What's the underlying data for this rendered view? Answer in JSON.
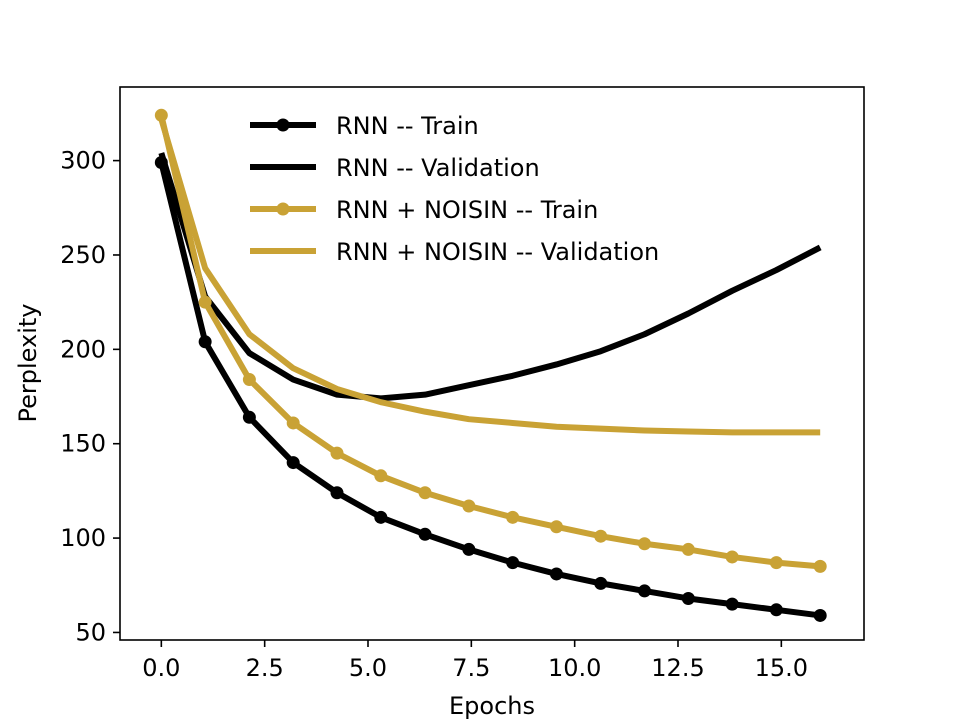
{
  "chart_data": {
    "type": "line",
    "xlabel": "Epochs",
    "ylabel": "Perplexity",
    "xlim": [
      -1.0,
      17.0
    ],
    "ylim": [
      46,
      339
    ],
    "xticks": [
      0.0,
      2.5,
      5.0,
      7.5,
      10.0,
      12.5,
      15.0
    ],
    "xtick_labels": [
      "0.0",
      "2.5",
      "5.0",
      "7.5",
      "10.0",
      "12.5",
      "15.0"
    ],
    "yticks": [
      50,
      100,
      150,
      200,
      250,
      300
    ],
    "ytick_labels": [
      "50",
      "100",
      "150",
      "200",
      "250",
      "300"
    ],
    "grid": false,
    "legend_position": "top-center",
    "series": [
      {
        "name": "RNN -- Train",
        "color": "#000000",
        "marker": "circle",
        "x": [
          0,
          1.06,
          2.13,
          3.19,
          4.25,
          5.31,
          6.38,
          7.44,
          8.5,
          9.56,
          10.63,
          11.69,
          12.75,
          13.81,
          14.88,
          15.94
        ],
        "y": [
          299,
          204,
          164,
          140,
          124,
          111,
          102,
          94,
          87,
          81,
          76,
          72,
          68,
          65,
          62,
          59
        ]
      },
      {
        "name": "RNN -- Validation",
        "color": "#000000",
        "marker": "none",
        "x": [
          0,
          1.06,
          2.13,
          3.19,
          4.25,
          5.31,
          6.38,
          7.44,
          8.5,
          9.56,
          10.63,
          11.69,
          12.75,
          13.81,
          14.88,
          15.94
        ],
        "y": [
          304,
          228,
          198,
          184,
          176,
          174,
          176,
          181,
          186,
          192,
          199,
          208,
          219,
          231,
          242,
          254
        ]
      },
      {
        "name": "RNN + NOISIN -- Train",
        "color": "#C9A235",
        "marker": "circle",
        "x": [
          0,
          1.06,
          2.13,
          3.19,
          4.25,
          5.31,
          6.38,
          7.44,
          8.5,
          9.56,
          10.63,
          11.69,
          12.75,
          13.81,
          14.88,
          15.94
        ],
        "y": [
          324,
          225,
          184,
          161,
          145,
          133,
          124,
          117,
          111,
          106,
          101,
          97,
          94,
          90,
          87,
          85
        ]
      },
      {
        "name": "RNN + NOISIN -- Validation",
        "color": "#C9A235",
        "marker": "none",
        "x": [
          0,
          1.06,
          2.13,
          3.19,
          4.25,
          5.31,
          6.38,
          7.44,
          8.5,
          9.56,
          10.63,
          11.69,
          12.75,
          13.81,
          14.88,
          15.94
        ],
        "y": [
          322,
          243,
          208,
          190,
          179,
          172,
          167,
          163,
          161,
          159,
          158,
          157,
          156.5,
          156,
          156,
          156
        ]
      }
    ]
  }
}
